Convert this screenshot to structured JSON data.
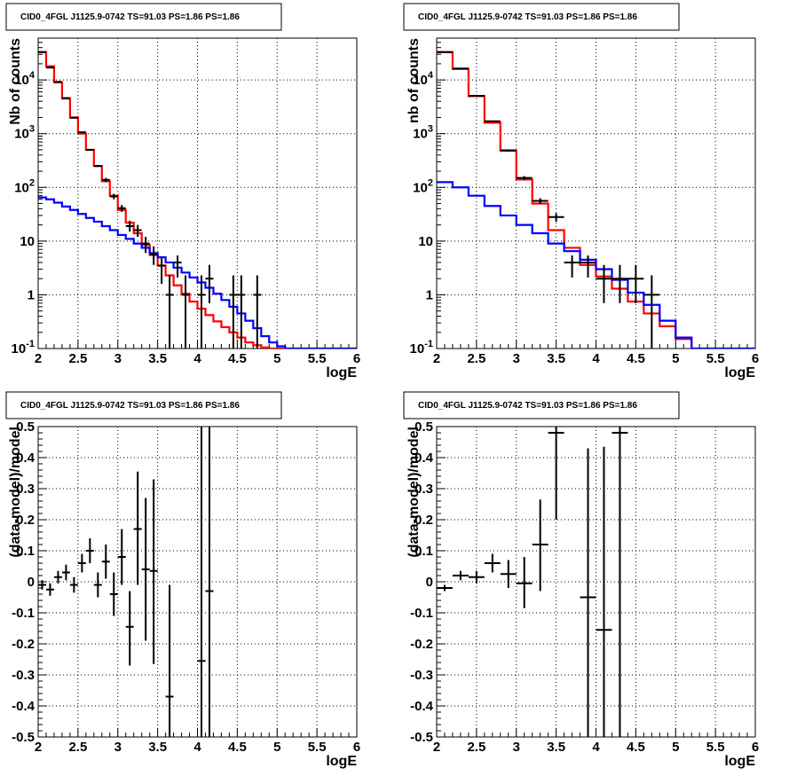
{
  "chart_data": [
    {
      "panel": "top-left",
      "type": "line",
      "title": "CID0_4FGL J1125.9-0742 TS=91.03 PS=1.86 PS=1.86",
      "xlabel": "logE",
      "ylabel": "Nb of counts",
      "log_y": true,
      "grid": true,
      "xlim": [
        2,
        6
      ],
      "ylim": [
        0.1,
        60000
      ],
      "xticks": [
        "2",
        "2.5",
        "3",
        "3.5",
        "4",
        "4.5",
        "5",
        "5.5",
        "6"
      ],
      "yticks": [
        {
          "v": 0.1,
          "label": "10",
          "sup": "-1"
        },
        {
          "v": 1,
          "label": "1",
          "sup": ""
        },
        {
          "v": 10,
          "label": "10",
          "sup": ""
        },
        {
          "v": 100,
          "label": "10",
          "sup": "2"
        },
        {
          "v": 1000,
          "label": "10",
          "sup": "3"
        },
        {
          "v": 10000,
          "label": "10",
          "sup": "4"
        }
      ],
      "bin_edges": [
        2,
        2.1,
        2.2,
        2.3,
        2.4,
        2.5,
        2.6,
        2.7,
        2.8,
        2.9,
        3,
        3.1,
        3.2,
        3.3,
        3.4,
        3.5,
        3.6,
        3.7,
        3.8,
        3.9,
        4,
        4.1,
        4.2,
        4.3,
        4.4,
        4.5,
        4.6,
        4.7,
        4.8,
        4.9,
        5,
        5.1,
        5.2,
        5.3,
        5.4,
        5.5,
        5.6,
        5.7,
        5.8,
        5.9,
        6
      ],
      "series": [
        {
          "color": "#ff0000",
          "style": "step",
          "values": [
            33000,
            18000,
            9000,
            4500,
            2000,
            1000,
            500,
            250,
            130,
            70,
            38,
            22,
            14,
            8.5,
            5.5,
            3.5,
            2.3,
            1.5,
            1.05,
            0.75,
            0.55,
            0.42,
            0.32,
            0.25,
            0.2,
            0.16,
            0.13,
            0.115,
            0.105,
            0.1,
            0.1,
            0.1,
            0.1,
            0.1,
            0.1,
            0.1,
            0.1,
            0.1,
            0.1,
            0.1
          ]
        },
        {
          "color": "#0000ff",
          "style": "step",
          "values": [
            65,
            60,
            52,
            44,
            38,
            32,
            27,
            23,
            19,
            16,
            13,
            11,
            9,
            7.5,
            6,
            5,
            4,
            3.2,
            2.6,
            2.1,
            1.7,
            1.35,
            1.05,
            0.8,
            0.6,
            0.45,
            0.33,
            0.24,
            0.17,
            0.13,
            0.11,
            0.1,
            0.1,
            0.1,
            0.1,
            0.1,
            0.1,
            0.1,
            0.1,
            0.1
          ]
        },
        {
          "color": "#000000",
          "style": "points",
          "points": [
            {
              "x": 2.05,
              "y": 33000,
              "lo": 32800,
              "hi": 33200
            },
            {
              "x": 2.15,
              "y": 17000,
              "lo": 16800,
              "hi": 17200
            },
            {
              "x": 2.25,
              "y": 9200,
              "lo": 9100,
              "hi": 9300
            },
            {
              "x": 2.35,
              "y": 4600,
              "lo": 4540,
              "hi": 4660
            },
            {
              "x": 2.45,
              "y": 1980,
              "lo": 1940,
              "hi": 2020
            },
            {
              "x": 2.55,
              "y": 1060,
              "lo": 1030,
              "hi": 1090
            },
            {
              "x": 2.65,
              "y": 500,
              "lo": 480,
              "hi": 520
            },
            {
              "x": 2.75,
              "y": 250,
              "lo": 240,
              "hi": 260
            },
            {
              "x": 2.85,
              "y": 138,
              "lo": 126,
              "hi": 150
            },
            {
              "x": 2.95,
              "y": 68,
              "lo": 60,
              "hi": 76
            },
            {
              "x": 3.05,
              "y": 41,
              "lo": 35,
              "hi": 47
            },
            {
              "x": 3.15,
              "y": 19,
              "lo": 15,
              "hi": 24
            },
            {
              "x": 3.25,
              "y": 16,
              "lo": 12,
              "hi": 20
            },
            {
              "x": 3.35,
              "y": 9,
              "lo": 6,
              "hi": 12
            },
            {
              "x": 3.45,
              "y": 5.7,
              "lo": 3.6,
              "hi": 8
            },
            {
              "x": 3.55,
              "y": 3.5,
              "lo": 1.6,
              "hi": 4.8
            },
            {
              "x": 3.65,
              "y": 1,
              "lo": 0.1,
              "hi": 2.3
            },
            {
              "x": 3.75,
              "y": 4,
              "lo": 2.1,
              "hi": 5.4
            },
            {
              "x": 3.85,
              "y": 1,
              "lo": 0.1,
              "hi": 2.3
            },
            {
              "x": 4.05,
              "y": 1,
              "lo": 0.1,
              "hi": 2.3
            },
            {
              "x": 4.15,
              "y": 2,
              "lo": 0.7,
              "hi": 3.6
            },
            {
              "x": 4.45,
              "y": 1,
              "lo": 0.1,
              "hi": 2.3
            },
            {
              "x": 4.55,
              "y": 1,
              "lo": 0.1,
              "hi": 2.3
            },
            {
              "x": 4.75,
              "y": 1,
              "lo": 0.1,
              "hi": 2.3
            }
          ]
        }
      ]
    },
    {
      "panel": "top-right",
      "type": "line",
      "title": "CID0_4FGL J1125.9-0742 TS=91.03 PS=1.86 PS=1.86",
      "xlabel": "logE",
      "ylabel": "nb of counts",
      "log_y": true,
      "grid": true,
      "xlim": [
        2,
        6
      ],
      "ylim": [
        0.1,
        60000
      ],
      "xticks": [
        "2",
        "2.5",
        "3",
        "3.5",
        "4",
        "4.5",
        "5",
        "5.5",
        "6"
      ],
      "yticks": [
        {
          "v": 0.1,
          "label": "10",
          "sup": "-1"
        },
        {
          "v": 1,
          "label": "1",
          "sup": ""
        },
        {
          "v": 10,
          "label": "10",
          "sup": ""
        },
        {
          "v": 100,
          "label": "10",
          "sup": "2"
        },
        {
          "v": 1000,
          "label": "10",
          "sup": "3"
        },
        {
          "v": 10000,
          "label": "10",
          "sup": "4"
        }
      ],
      "bin_edges": [
        2,
        2.2,
        2.4,
        2.6,
        2.8,
        3,
        3.2,
        3.4,
        3.6,
        3.8,
        4,
        4.2,
        4.4,
        4.6,
        4.8,
        5,
        5.2,
        5.4,
        5.6,
        5.8,
        6
      ],
      "series": [
        {
          "color": "#ff0000",
          "style": "step",
          "values": [
            33000,
            16000,
            5000,
            1600,
            480,
            140,
            50,
            16,
            7.5,
            3.6,
            2.2,
            1.3,
            0.75,
            0.45,
            0.26,
            0.15,
            0.1,
            0.1,
            0.1,
            0.1
          ]
        },
        {
          "color": "#0000ff",
          "style": "step",
          "values": [
            125,
            100,
            70,
            45,
            30,
            20,
            14,
            9,
            6.5,
            4.5,
            3,
            1.9,
            1.1,
            0.65,
            0.33,
            0.16,
            0.1,
            0.1,
            0.1,
            0.1
          ]
        },
        {
          "color": "#000000",
          "style": "points",
          "points": [
            {
              "x": 2.1,
              "y": 33000,
              "lo": 32800,
              "hi": 33200
            },
            {
              "x": 2.3,
              "y": 16300,
              "lo": 16170,
              "hi": 16430
            },
            {
              "x": 2.5,
              "y": 5070,
              "lo": 5000,
              "hi": 5140
            },
            {
              "x": 2.7,
              "y": 1700,
              "lo": 1660,
              "hi": 1740
            },
            {
              "x": 2.9,
              "y": 490,
              "lo": 468,
              "hi": 512
            },
            {
              "x": 3.1,
              "y": 150,
              "lo": 138,
              "hi": 162
            },
            {
              "x": 3.3,
              "y": 56,
              "lo": 49,
              "hi": 63
            },
            {
              "x": 3.5,
              "y": 28,
              "lo": 23,
              "hi": 33
            },
            {
              "x": 3.7,
              "y": 4,
              "lo": 2.1,
              "hi": 5.4
            },
            {
              "x": 3.9,
              "y": 4,
              "lo": 2.1,
              "hi": 5.4
            },
            {
              "x": 4.1,
              "y": 2,
              "lo": 0.7,
              "hi": 3.6
            },
            {
              "x": 4.3,
              "y": 2,
              "lo": 0.7,
              "hi": 3.6
            },
            {
              "x": 4.5,
              "y": 2,
              "lo": 0.7,
              "hi": 3.6
            },
            {
              "x": 4.7,
              "y": 1,
              "lo": 0.1,
              "hi": 2.3
            }
          ]
        }
      ]
    },
    {
      "panel": "bottom-left",
      "type": "scatter",
      "title": "CID0_4FGL J1125.9-0742 TS=91.03 PS=1.86 PS=1.86",
      "xlabel": "logE",
      "ylabel": "(data-model)/model",
      "log_y": false,
      "grid": true,
      "xlim": [
        2,
        6
      ],
      "ylim": [
        -0.5,
        0.5
      ],
      "xticks": [
        "2",
        "2.5",
        "3",
        "3.5",
        "4",
        "4.5",
        "5",
        "5.5",
        "6"
      ],
      "yticks": [
        {
          "v": -0.5,
          "label": "-0.5"
        },
        {
          "v": -0.4,
          "label": "-0.4"
        },
        {
          "v": -0.3,
          "label": "-0.3"
        },
        {
          "v": -0.2,
          "label": "-0.2"
        },
        {
          "v": -0.1,
          "label": "-0.1"
        },
        {
          "v": 0,
          "label": "0"
        },
        {
          "v": 0.1,
          "label": "0.1"
        },
        {
          "v": 0.2,
          "label": "0.2"
        },
        {
          "v": 0.3,
          "label": "0.3"
        },
        {
          "v": 0.4,
          "label": "0.4"
        },
        {
          "v": 0.5,
          "label": "0.5"
        }
      ],
      "points": [
        {
          "x": 2.05,
          "y": -0.01,
          "lo": -0.025,
          "hi": 0.005,
          "hw": 0.05
        },
        {
          "x": 2.15,
          "y": -0.025,
          "lo": -0.045,
          "hi": -0.005,
          "hw": 0.05
        },
        {
          "x": 2.25,
          "y": 0.015,
          "lo": -0.005,
          "hi": 0.035,
          "hw": 0.05
        },
        {
          "x": 2.35,
          "y": 0.03,
          "lo": 0.005,
          "hi": 0.055,
          "hw": 0.05
        },
        {
          "x": 2.45,
          "y": -0.01,
          "lo": -0.035,
          "hi": 0.015,
          "hw": 0.05
        },
        {
          "x": 2.55,
          "y": 0.06,
          "lo": 0.03,
          "hi": 0.09,
          "hw": 0.05
        },
        {
          "x": 2.65,
          "y": 0.1,
          "lo": 0.06,
          "hi": 0.14,
          "hw": 0.05
        },
        {
          "x": 2.75,
          "y": -0.01,
          "lo": -0.05,
          "hi": 0.03,
          "hw": 0.05
        },
        {
          "x": 2.85,
          "y": 0.065,
          "lo": 0.01,
          "hi": 0.12,
          "hw": 0.05
        },
        {
          "x": 2.95,
          "y": -0.04,
          "lo": -0.11,
          "hi": 0.03,
          "hw": 0.05
        },
        {
          "x": 3.05,
          "y": 0.08,
          "lo": -0.01,
          "hi": 0.17,
          "hw": 0.05
        },
        {
          "x": 3.15,
          "y": -0.145,
          "lo": -0.27,
          "hi": -0.03,
          "hw": 0.05
        },
        {
          "x": 3.25,
          "y": 0.17,
          "lo": -0.01,
          "hi": 0.355,
          "hw": 0.05
        },
        {
          "x": 3.35,
          "y": 0.04,
          "lo": -0.19,
          "hi": 0.27,
          "hw": 0.05
        },
        {
          "x": 3.45,
          "y": 0.035,
          "lo": -0.265,
          "hi": 0.33,
          "hw": 0.05
        },
        {
          "x": 3.65,
          "y": -0.37,
          "lo": -0.5,
          "hi": -0.01,
          "hw": 0.05
        },
        {
          "x": 4.05,
          "y": -0.255,
          "lo": -0.5,
          "hi": 0.5,
          "hw": 0.05
        },
        {
          "x": 4.15,
          "y": -0.03,
          "lo": -0.5,
          "hi": 0.5,
          "hw": 0.05
        }
      ]
    },
    {
      "panel": "bottom-right",
      "type": "scatter",
      "title": "CID0_4FGL J1125.9-0742 TS=91.03 PS=1.86 PS=1.86",
      "xlabel": "logE",
      "ylabel": "(data-model)/model",
      "log_y": false,
      "grid": true,
      "xlim": [
        2,
        6
      ],
      "ylim": [
        -0.5,
        0.5
      ],
      "xticks": [
        "2",
        "2.5",
        "3",
        "3.5",
        "4",
        "4.5",
        "5",
        "5.5",
        "6"
      ],
      "yticks": [
        {
          "v": -0.5,
          "label": "-0.5"
        },
        {
          "v": -0.4,
          "label": "-0.4"
        },
        {
          "v": -0.3,
          "label": "-0.3"
        },
        {
          "v": -0.2,
          "label": "-0.2"
        },
        {
          "v": -0.1,
          "label": "-0.1"
        },
        {
          "v": 0,
          "label": "0"
        },
        {
          "v": 0.1,
          "label": "0.1"
        },
        {
          "v": 0.2,
          "label": "0.2"
        },
        {
          "v": 0.3,
          "label": "0.3"
        },
        {
          "v": 0.4,
          "label": "0.4"
        },
        {
          "v": 0.5,
          "label": "0.5"
        }
      ],
      "points": [
        {
          "x": 2.1,
          "y": -0.02,
          "lo": -0.03,
          "hi": -0.01,
          "hw": 0.1
        },
        {
          "x": 2.3,
          "y": 0.02,
          "lo": 0.005,
          "hi": 0.035,
          "hw": 0.1
        },
        {
          "x": 2.5,
          "y": 0.015,
          "lo": -0.005,
          "hi": 0.035,
          "hw": 0.1
        },
        {
          "x": 2.7,
          "y": 0.06,
          "lo": 0.03,
          "hi": 0.09,
          "hw": 0.1
        },
        {
          "x": 2.9,
          "y": 0.025,
          "lo": -0.02,
          "hi": 0.07,
          "hw": 0.1
        },
        {
          "x": 3.1,
          "y": -0.005,
          "lo": -0.085,
          "hi": 0.08,
          "hw": 0.1
        },
        {
          "x": 3.3,
          "y": 0.12,
          "lo": -0.03,
          "hi": 0.265,
          "hw": 0.1
        },
        {
          "x": 3.5,
          "y": 0.48,
          "lo": 0.2,
          "hi": 0.5,
          "hw": 0.1
        },
        {
          "x": 3.9,
          "y": -0.05,
          "lo": -0.5,
          "hi": 0.43,
          "hw": 0.1
        },
        {
          "x": 4.1,
          "y": -0.155,
          "lo": -0.5,
          "hi": 0.435,
          "hw": 0.1
        },
        {
          "x": 4.3,
          "y": 0.48,
          "lo": -0.5,
          "hi": 0.5,
          "hw": 0.1
        }
      ]
    }
  ]
}
